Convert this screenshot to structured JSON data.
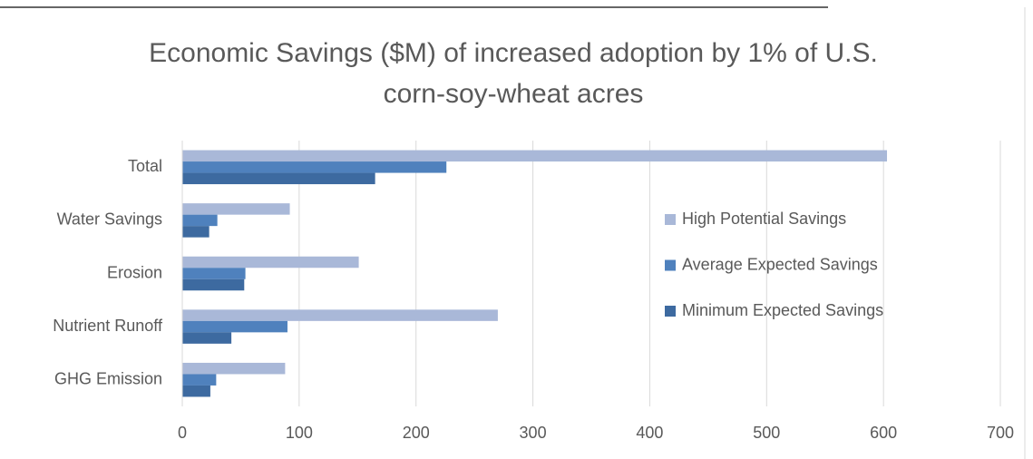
{
  "chart_data": {
    "type": "barh",
    "title": "Economic Savings ($M) of increased adoption by 1% of U.S. corn-soy-wheat acres",
    "categories": [
      "Total",
      "Water Savings",
      "Erosion",
      "Nutrient Runoff",
      "GHG Emission"
    ],
    "series": [
      {
        "name": "High Potential Savings",
        "color": "#a9b8d8",
        "values": [
          603,
          92,
          151,
          270,
          88
        ]
      },
      {
        "name": "Average Expected Savings",
        "color": "#4f81bd",
        "values": [
          226,
          30,
          54,
          90,
          29
        ]
      },
      {
        "name": "Minimum Expected Savings",
        "color": "#3d6aa0",
        "values": [
          165,
          23,
          53,
          42,
          24
        ]
      }
    ],
    "xlim": [
      0,
      700
    ],
    "xticks": [
      0,
      100,
      200,
      300,
      400,
      500,
      600,
      700
    ],
    "grid": true,
    "legend": "right"
  }
}
